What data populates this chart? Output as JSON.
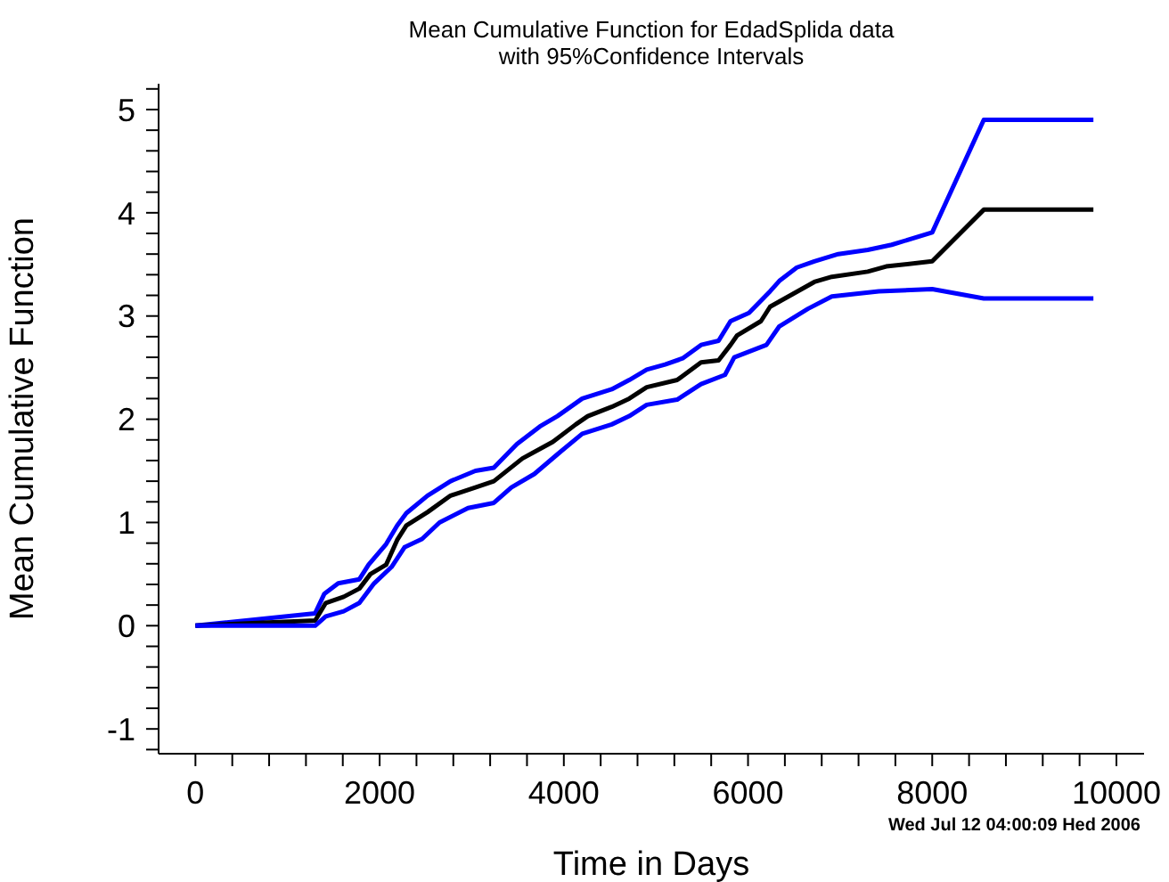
{
  "chart_data": {
    "type": "line",
    "title": "Mean Cumulative Function for EdadSplida data",
    "subtitle": "with 95%Confidence Intervals",
    "xlabel": "Time in Days",
    "ylabel": "Mean Cumulative Function",
    "annotations": [
      "Wed Jul 12 04:00:09 Hed 2006"
    ],
    "xlim": [
      -400,
      10300
    ],
    "ylim": [
      -1.24,
      5.25
    ],
    "xticks": [
      0,
      {
        "value": 400,
        "label": null
      },
      {
        "value": 800,
        "label": null
      },
      {
        "value": 1200,
        "label": null
      },
      {
        "value": 1600,
        "label": null
      },
      2000,
      {
        "value": 2400,
        "label": null
      },
      {
        "value": 2800,
        "label": null
      },
      {
        "value": 3200,
        "label": null
      },
      {
        "value": 3600,
        "label": null
      },
      4000,
      {
        "value": 4400,
        "label": null
      },
      {
        "value": 4800,
        "label": null
      },
      {
        "value": 5200,
        "label": null
      },
      {
        "value": 5600,
        "label": null
      },
      6000,
      {
        "value": 6400,
        "label": null
      },
      {
        "value": 6800,
        "label": null
      },
      {
        "value": 7200,
        "label": null
      },
      {
        "value": 7600,
        "label": null
      },
      8000,
      {
        "value": 8400,
        "label": null
      },
      {
        "value": 8800,
        "label": null
      },
      {
        "value": 9200,
        "label": null
      },
      {
        "value": 9600,
        "label": null
      },
      10000
    ],
    "yticks": [
      {
        "value": -1.2,
        "label": null
      },
      -1,
      {
        "value": -0.8,
        "label": null
      },
      {
        "value": -0.6,
        "label": null
      },
      {
        "value": -0.4,
        "label": null
      },
      {
        "value": -0.2,
        "label": null
      },
      0,
      {
        "value": 0.2,
        "label": null
      },
      {
        "value": 0.4,
        "label": null
      },
      {
        "value": 0.6,
        "label": null
      },
      {
        "value": 0.8,
        "label": null
      },
      1,
      {
        "value": 1.2,
        "label": null
      },
      {
        "value": 1.4,
        "label": null
      },
      {
        "value": 1.6,
        "label": null
      },
      {
        "value": 1.8,
        "label": null
      },
      2,
      {
        "value": 2.2,
        "label": null
      },
      {
        "value": 2.4,
        "label": null
      },
      {
        "value": 2.6,
        "label": null
      },
      {
        "value": 2.8,
        "label": null
      },
      3,
      {
        "value": 3.2,
        "label": null
      },
      {
        "value": 3.4,
        "label": null
      },
      {
        "value": 3.6,
        "label": null
      },
      {
        "value": 3.8,
        "label": null
      },
      4,
      {
        "value": 4.2,
        "label": null
      },
      {
        "value": 4.4,
        "label": null
      },
      {
        "value": 4.6,
        "label": null
      },
      {
        "value": 4.8,
        "label": null
      },
      5,
      {
        "value": 5.2,
        "label": null
      }
    ],
    "grid": false,
    "legend": false,
    "marker": "none",
    "line_style": "solid",
    "series": [
      {
        "color": "#0000ff",
        "x": [
          0,
          1300,
          1400,
          1550,
          1780,
          1880,
          2070,
          2190,
          2290,
          2520,
          2770,
          3040,
          3240,
          3490,
          3740,
          3930,
          4200,
          4520,
          4710,
          4900,
          5100,
          5290,
          5490,
          5680,
          5810,
          6010,
          6240,
          6340,
          6530,
          6720,
          6980,
          7300,
          7560,
          8000,
          8560,
          9750
        ],
        "values": [
          0,
          0.12,
          0.31,
          0.41,
          0.45,
          0.59,
          0.79,
          0.97,
          1.09,
          1.26,
          1.4,
          1.5,
          1.53,
          1.76,
          1.93,
          2.03,
          2.2,
          2.29,
          2.38,
          2.48,
          2.53,
          2.59,
          2.72,
          2.76,
          2.95,
          3.03,
          3.24,
          3.34,
          3.47,
          3.53,
          3.6,
          3.64,
          3.69,
          3.81,
          4.9,
          4.9
        ]
      },
      {
        "color": "#000000",
        "x": [
          0,
          1300,
          1415,
          1610,
          1780,
          1900,
          2070,
          2190,
          2290,
          2520,
          2770,
          3040,
          3240,
          3550,
          3880,
          4130,
          4260,
          4520,
          4710,
          4900,
          5230,
          5490,
          5680,
          5810,
          5880,
          6140,
          6240,
          6400,
          6720,
          6910,
          7300,
          7500,
          8000,
          8560,
          9750
        ],
        "values": [
          0,
          0.05,
          0.22,
          0.28,
          0.36,
          0.5,
          0.59,
          0.83,
          0.97,
          1.1,
          1.26,
          1.34,
          1.4,
          1.62,
          1.78,
          1.95,
          2.03,
          2.12,
          2.2,
          2.31,
          2.38,
          2.55,
          2.57,
          2.72,
          2.81,
          2.95,
          3.09,
          3.17,
          3.33,
          3.38,
          3.43,
          3.48,
          3.53,
          4.03,
          4.03
        ]
      },
      {
        "color": "#0000ff",
        "x": [
          0,
          1300,
          1415,
          1610,
          1780,
          1940,
          2130,
          2270,
          2460,
          2650,
          2960,
          3240,
          3430,
          3680,
          3930,
          4200,
          4520,
          4710,
          4900,
          5230,
          5490,
          5750,
          5850,
          6200,
          6340,
          6650,
          6910,
          7420,
          8000,
          8560,
          9750
        ],
        "values": [
          0,
          0,
          0.09,
          0.14,
          0.22,
          0.41,
          0.57,
          0.76,
          0.84,
          1.0,
          1.14,
          1.19,
          1.34,
          1.47,
          1.66,
          1.86,
          1.95,
          2.03,
          2.14,
          2.19,
          2.34,
          2.43,
          2.6,
          2.72,
          2.9,
          3.07,
          3.19,
          3.24,
          3.26,
          3.17,
          3.17
        ]
      }
    ]
  }
}
